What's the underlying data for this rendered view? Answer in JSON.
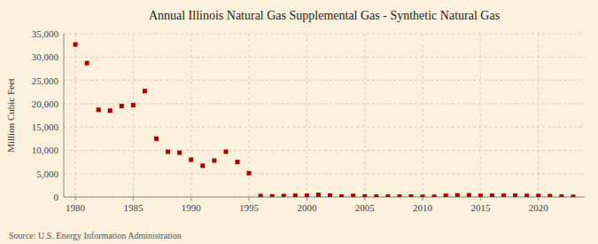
{
  "chart_data": {
    "type": "scatter",
    "title": "Annual Illinois Natural Gas Supplemental Gas - Synthetic Natural Gas",
    "ylabel": "Million Cubic Feet",
    "source": "Source: U.S. Energy Information Administration",
    "x": [
      1980,
      1981,
      1982,
      1983,
      1984,
      1985,
      1986,
      1987,
      1988,
      1989,
      1990,
      1991,
      1992,
      1993,
      1994,
      1995,
      1996,
      1997,
      1998,
      1999,
      2000,
      2001,
      2002,
      2003,
      2004,
      2005,
      2006,
      2007,
      2008,
      2009,
      2010,
      2011,
      2012,
      2013,
      2014,
      2015,
      2016,
      2017,
      2018,
      2019,
      2020,
      2021,
      2022,
      2023
    ],
    "values": [
      32700,
      28700,
      18700,
      18500,
      19500,
      19700,
      22700,
      12500,
      9700,
      9500,
      8000,
      6700,
      7800,
      9700,
      7500,
      5100,
      200,
      130,
      200,
      270,
      290,
      440,
      300,
      90,
      250,
      90,
      80,
      80,
      80,
      80,
      50,
      50,
      250,
      350,
      360,
      240,
      280,
      270,
      270,
      230,
      230,
      180,
      80,
      50
    ],
    "color": "#aa0000",
    "marker": "square",
    "xlim": [
      1979,
      2024
    ],
    "xticks": [
      1980,
      1985,
      1990,
      1995,
      2000,
      2005,
      2010,
      2015,
      2020
    ],
    "ylim": [
      0,
      35000
    ],
    "yticks": [
      0,
      {
        "value": 5000,
        "label": "5,000"
      },
      {
        "value": 10000,
        "label": "10,000"
      },
      {
        "value": 15000,
        "label": "15,000"
      },
      {
        "value": 20000,
        "label": "20,000"
      },
      {
        "value": 25000,
        "label": "25,000"
      },
      {
        "value": 30000,
        "label": "30,000"
      },
      {
        "value": 35000,
        "label": "35,000"
      }
    ],
    "grid": true
  }
}
